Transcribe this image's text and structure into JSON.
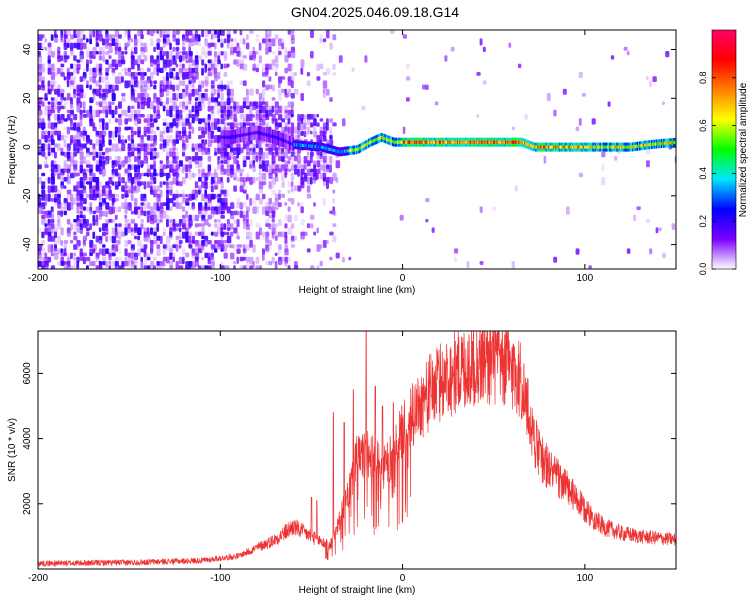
{
  "title": "GN04.2025.046.09.18.G14",
  "chart_data": [
    {
      "type": "heatmap",
      "xlabel": "Height of straight line (km)",
      "ylabel": "Frequency (Hz)",
      "xlim": [
        -200,
        150
      ],
      "ylim": [
        -50,
        48
      ],
      "xticks": [
        -200,
        -100,
        0,
        100
      ],
      "yticks": [
        -40,
        -20,
        0,
        20,
        40
      ],
      "colorbar": {
        "label": "Normalized spectral amplitude",
        "range": [
          0.0,
          1.0
        ],
        "ticks": [
          0.0,
          0.2,
          0.4,
          0.6,
          0.8
        ],
        "colors": [
          "#ffffff",
          "#7b00ff",
          "#0000ff",
          "#00e6ff",
          "#00ff00",
          "#ffff00",
          "#ff7f00",
          "#ff0000",
          "#ff0066"
        ]
      },
      "ridge": [
        {
          "x": -95,
          "y": 4
        },
        {
          "x": -80,
          "y": 6
        },
        {
          "x": -70,
          "y": 4
        },
        {
          "x": -60,
          "y": 1
        },
        {
          "x": -45,
          "y": 0
        },
        {
          "x": -35,
          "y": -2
        },
        {
          "x": -25,
          "y": -1
        },
        {
          "x": -18,
          "y": 2
        },
        {
          "x": -12,
          "y": 4
        },
        {
          "x": -5,
          "y": 2
        },
        {
          "x": 10,
          "y": 2
        },
        {
          "x": 30,
          "y": 2
        },
        {
          "x": 50,
          "y": 2
        },
        {
          "x": 65,
          "y": 2
        },
        {
          "x": 72,
          "y": 0
        },
        {
          "x": 90,
          "y": 0
        },
        {
          "x": 110,
          "y": 0
        },
        {
          "x": 125,
          "y": 0
        },
        {
          "x": 135,
          "y": 1
        },
        {
          "x": 150,
          "y": 2
        }
      ]
    },
    {
      "type": "line",
      "xlabel": "Height of straight line (km)",
      "ylabel": "SNR (10 * v/v)",
      "xlim": [
        -200,
        150
      ],
      "ylim": [
        0,
        7300
      ],
      "xticks": [
        -200,
        -100,
        0,
        100
      ],
      "yticks": [
        2000,
        4000,
        6000
      ],
      "color": "#ee3333",
      "envelope": [
        {
          "x": -200,
          "y": 170
        },
        {
          "x": -150,
          "y": 200
        },
        {
          "x": -110,
          "y": 260
        },
        {
          "x": -90,
          "y": 400
        },
        {
          "x": -80,
          "y": 650
        },
        {
          "x": -70,
          "y": 900
        },
        {
          "x": -60,
          "y": 1300
        },
        {
          "x": -50,
          "y": 1000
        },
        {
          "x": -40,
          "y": 700
        },
        {
          "x": -30,
          "y": 2200
        },
        {
          "x": -25,
          "y": 3400
        },
        {
          "x": -20,
          "y": 3500
        },
        {
          "x": -15,
          "y": 3300
        },
        {
          "x": -10,
          "y": 3100
        },
        {
          "x": -5,
          "y": 3500
        },
        {
          "x": 0,
          "y": 4200
        },
        {
          "x": 10,
          "y": 5100
        },
        {
          "x": 20,
          "y": 5700
        },
        {
          "x": 30,
          "y": 6100
        },
        {
          "x": 40,
          "y": 6350
        },
        {
          "x": 50,
          "y": 6400
        },
        {
          "x": 60,
          "y": 6150
        },
        {
          "x": 65,
          "y": 5800
        },
        {
          "x": 70,
          "y": 4500
        },
        {
          "x": 75,
          "y": 3500
        },
        {
          "x": 80,
          "y": 3100
        },
        {
          "x": 90,
          "y": 2500
        },
        {
          "x": 100,
          "y": 1800
        },
        {
          "x": 110,
          "y": 1300
        },
        {
          "x": 120,
          "y": 1100
        },
        {
          "x": 130,
          "y": 1000
        },
        {
          "x": 150,
          "y": 900
        }
      ],
      "spikes": [
        {
          "x": -20,
          "y": 7300
        },
        {
          "x": -27,
          "y": 5500
        },
        {
          "x": -15,
          "y": 5600
        },
        {
          "x": -11,
          "y": 5000
        },
        {
          "x": -5,
          "y": 5100
        },
        {
          "x": -32,
          "y": 4500
        },
        {
          "x": -38,
          "y": 4800
        },
        {
          "x": -50,
          "y": 2200
        },
        {
          "x": -47,
          "y": 2100
        },
        {
          "x": 60,
          "y": 6800
        }
      ]
    }
  ]
}
